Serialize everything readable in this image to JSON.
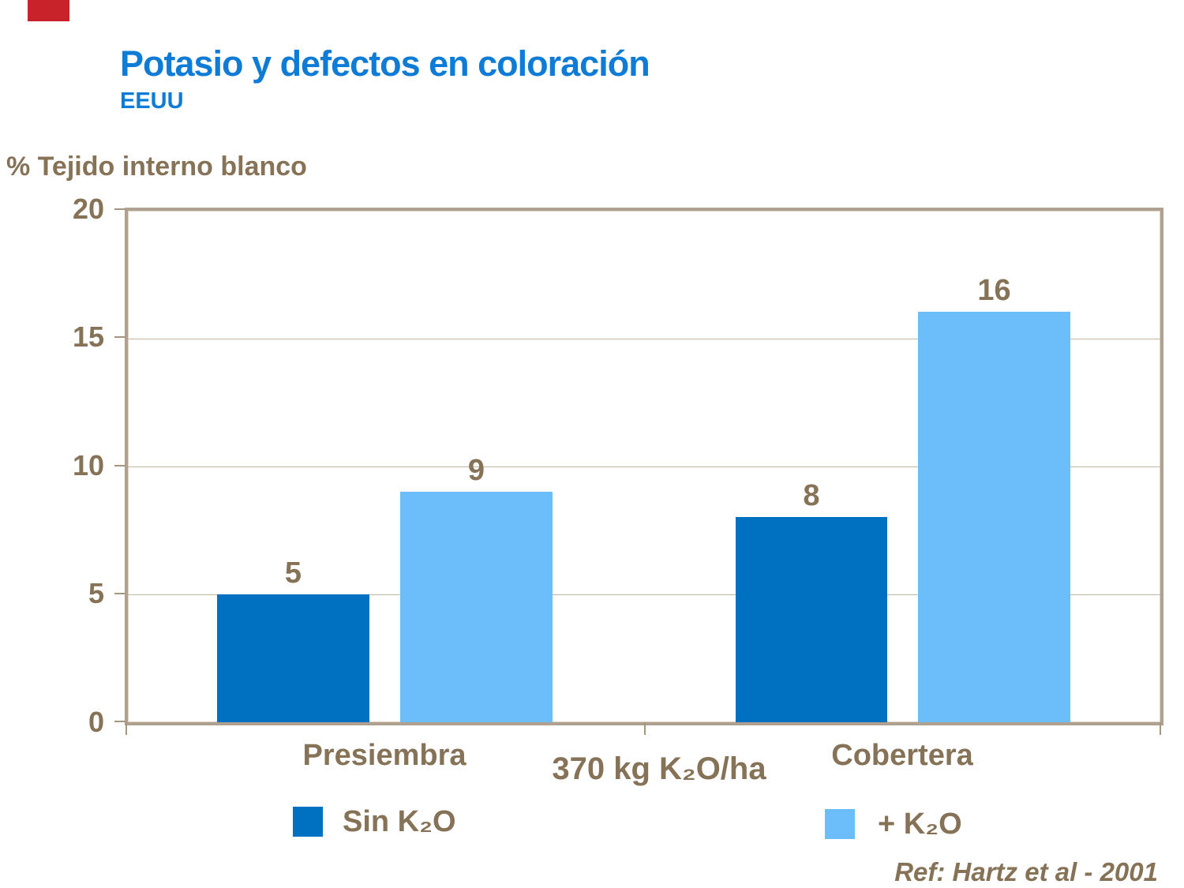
{
  "accents": {
    "red_marker": "#C8232B",
    "title_blue": "#0E7CD6",
    "text_brown": "#857257",
    "frame_taupe": "#AFA090",
    "gridline_taupe": "#C3B5A0"
  },
  "header": {
    "title": "Potasio y defectos en coloración",
    "subtitle": "EEUU"
  },
  "chart_data": {
    "type": "bar",
    "title": "Potasio y defectos en coloración",
    "subtitle": "EEUU",
    "ylabel": "% Tejido interno blanco",
    "xlabel": "",
    "categories": [
      "Presiembra",
      "Cobertera"
    ],
    "series": [
      {
        "name": "Sin K₂O",
        "color": "#0070C0",
        "values": [
          5,
          8
        ]
      },
      {
        "name": "+ K₂O",
        "color": "#6BBEF9",
        "values": [
          9,
          16
        ]
      }
    ],
    "ylim": [
      0,
      20
    ],
    "yticks": [
      0,
      5,
      10,
      15,
      20
    ],
    "grid": true,
    "legend_position": "bottom",
    "annotation": "370 kg K₂O/ha"
  },
  "footer": {
    "ref": "Ref: Hartz et al - 2001"
  }
}
